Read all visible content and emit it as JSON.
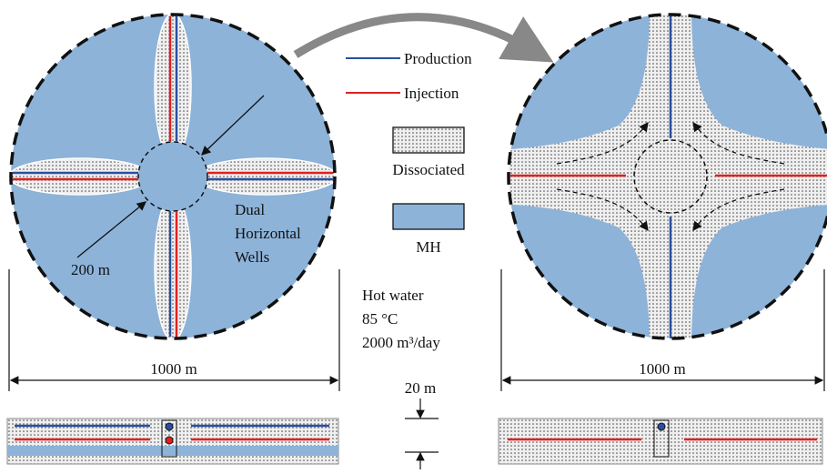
{
  "legend": {
    "production": "Production",
    "injection": "Injection",
    "dissociated": "Dissociated",
    "mh": "MH"
  },
  "left_panel": {
    "wells_label": [
      "Dual",
      "Horizontal",
      "Wells"
    ],
    "radius_label": "200 m",
    "width_label": "1000 m"
  },
  "conditions": [
    "Hot water",
    "85 °C",
    "2000 m³/day"
  ],
  "right_panel": {
    "width_label": "1000 m"
  },
  "thickness_label": "20 m"
}
